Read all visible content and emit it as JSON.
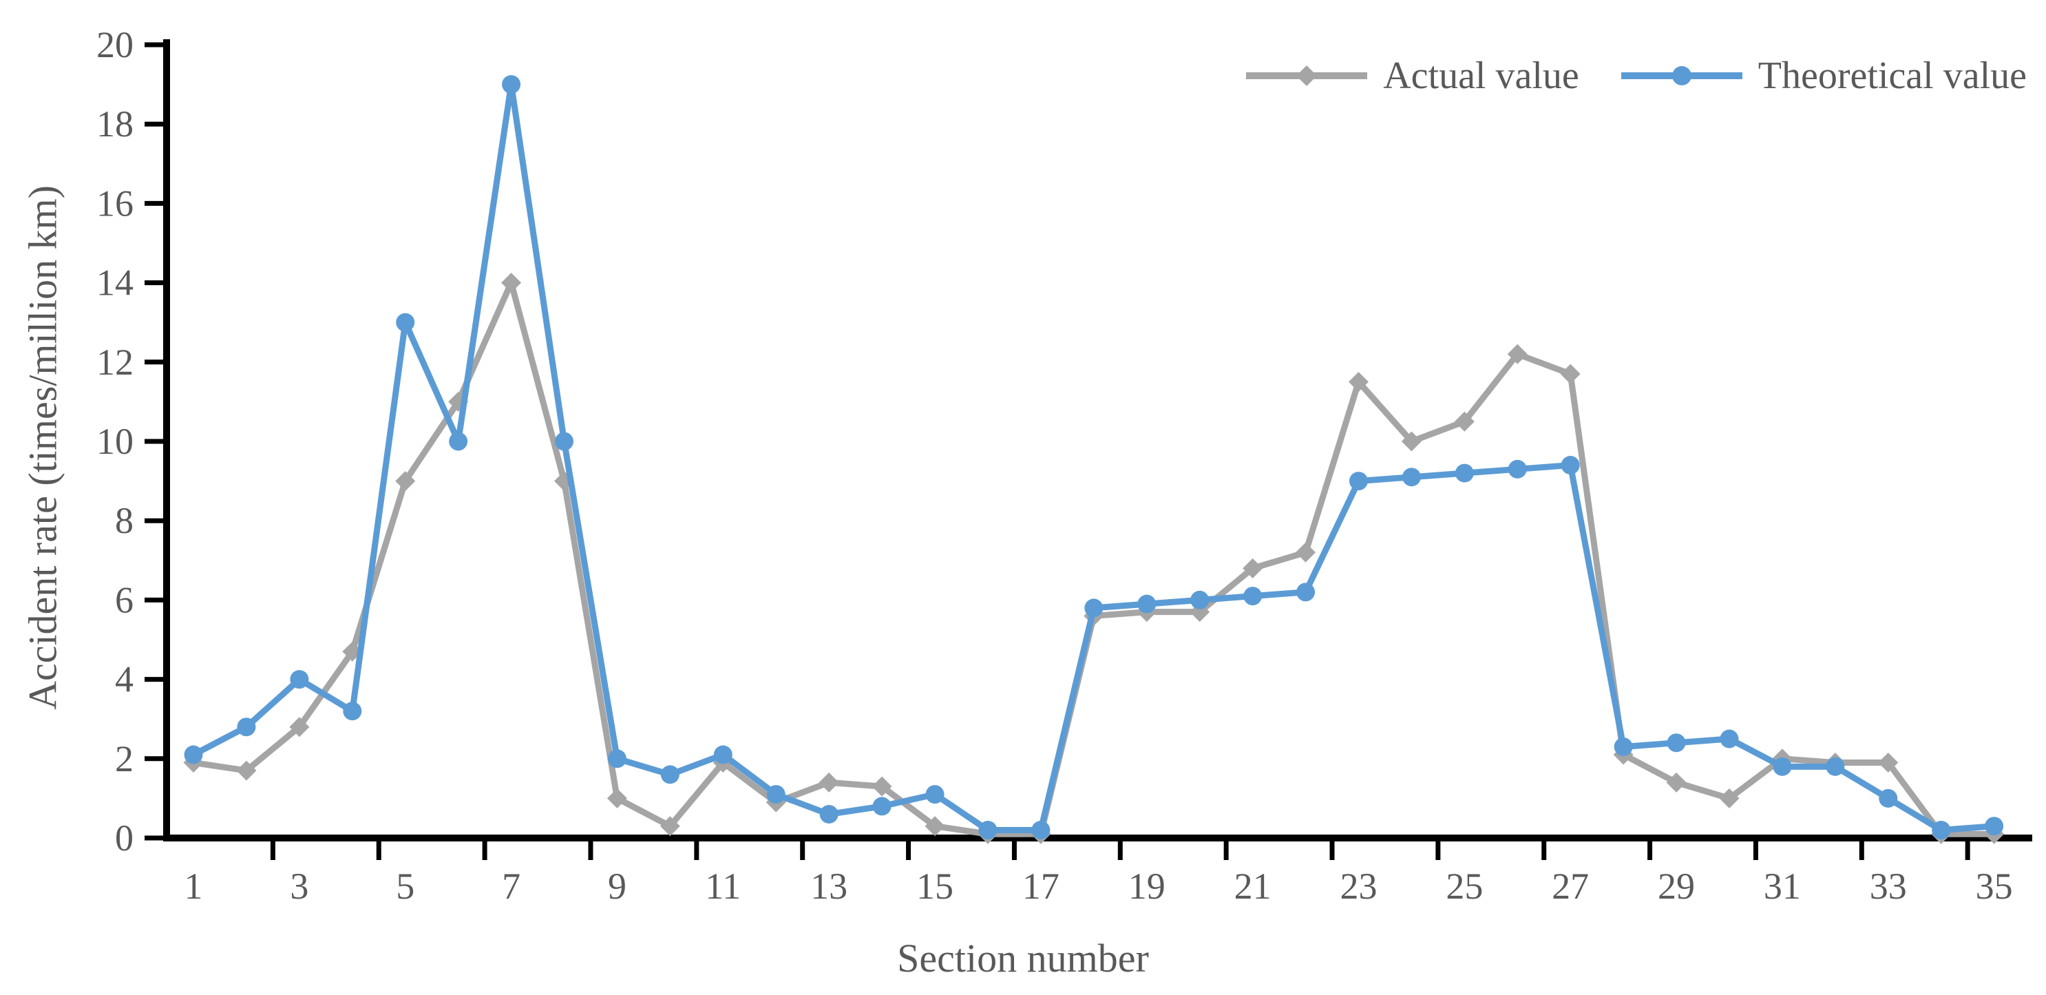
{
  "chart_data": {
    "type": "line",
    "title": "",
    "xlabel": "Section number",
    "ylabel": "Accident rate (times/million km)",
    "x": [
      1,
      2,
      3,
      4,
      5,
      6,
      7,
      8,
      9,
      10,
      11,
      12,
      13,
      14,
      15,
      16,
      17,
      18,
      19,
      20,
      21,
      22,
      23,
      24,
      25,
      26,
      27,
      28,
      29,
      30,
      31,
      32,
      33,
      34,
      35
    ],
    "series": [
      {
        "name": "Actual value",
        "color": "#A5A5A5",
        "marker": "diamond",
        "values": [
          1.9,
          1.7,
          2.8,
          4.7,
          9.0,
          11.0,
          14.0,
          9.0,
          1.0,
          0.3,
          1.9,
          0.9,
          1.4,
          1.3,
          0.3,
          0.1,
          0.1,
          5.6,
          5.7,
          5.7,
          6.8,
          7.2,
          11.5,
          10.0,
          10.5,
          12.2,
          11.7,
          2.1,
          1.4,
          1.0,
          2.0,
          1.9,
          1.9,
          0.1,
          0.1
        ]
      },
      {
        "name": "Theoretical value",
        "color": "#5B9BD5",
        "marker": "circle",
        "values": [
          2.1,
          2.8,
          4.0,
          3.2,
          13.0,
          10.0,
          19.0,
          10.0,
          2.0,
          1.6,
          2.1,
          1.1,
          0.6,
          0.8,
          1.1,
          0.2,
          0.2,
          5.8,
          5.9,
          6.0,
          6.1,
          6.2,
          9.0,
          9.1,
          9.2,
          9.3,
          9.4,
          2.3,
          2.4,
          2.5,
          1.8,
          1.8,
          1.0,
          0.2,
          0.3
        ]
      }
    ],
    "ylim": [
      0,
      20
    ],
    "y_ticks": [
      0,
      2,
      4,
      6,
      8,
      10,
      12,
      14,
      16,
      18,
      20
    ],
    "x_tick_labels": [
      1,
      3,
      5,
      7,
      9,
      11,
      13,
      15,
      17,
      19,
      21,
      23,
      25,
      27,
      29,
      31,
      33,
      35
    ],
    "legend_position": "top-right",
    "grid": false,
    "axis_color": "#000000",
    "text_color": "#595959"
  }
}
